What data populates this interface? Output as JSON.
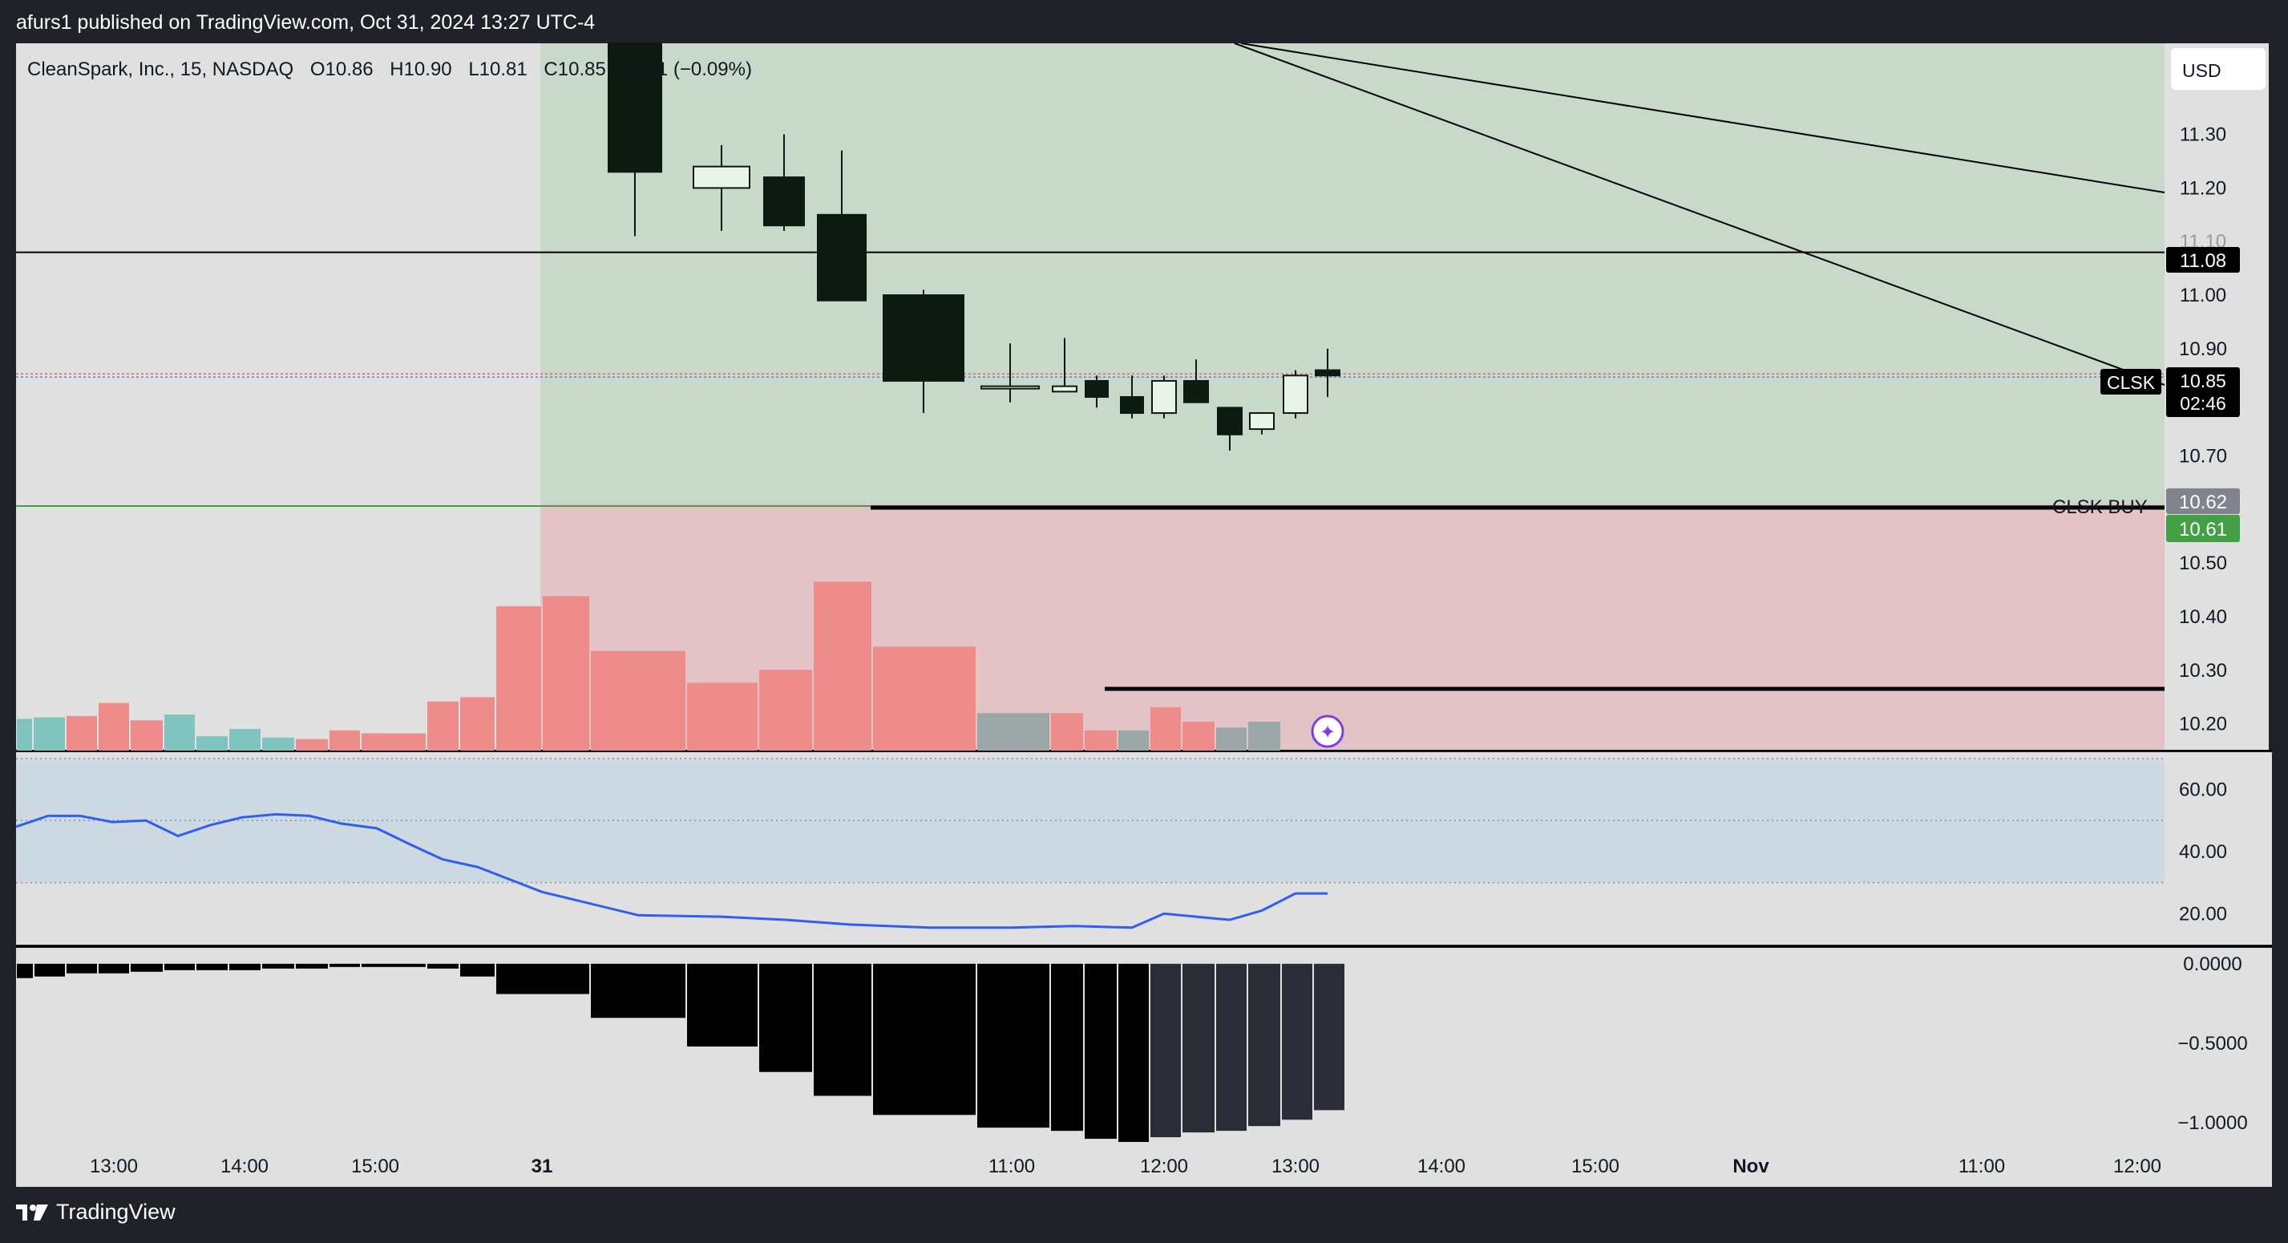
{
  "header": {
    "published": "afurs1 published on TradingView.com, Oct 31, 2024 13:27 UTC-4"
  },
  "footer": {
    "brand": "TradingView"
  },
  "legend": {
    "symbol": "CleanSpark, Inc., 15, NASDAQ",
    "o_label": "O",
    "o": "10.86",
    "h_label": "H",
    "h": "10.90",
    "l_label": "L",
    "l": "10.81",
    "c_label": "C",
    "c": "10.85",
    "change": "−0.01 (−0.09%)"
  },
  "currency_button": "USD",
  "colors": {
    "bg_outer": "#1f2229",
    "pane_bg": "#e0e0e0",
    "profit_zone": "#c8d9c9",
    "loss_zone": "#e3c3c6",
    "candle_down": "#0d1a12",
    "candle_up": "#e9f3ea",
    "vol_up": "#7fc4be",
    "vol_down": "#ee8c8c",
    "vol_neutral": "#9aa7a6",
    "rsi_line": "#2f5ef0",
    "rsi_band": "#cdd9e3",
    "hist": "#000000",
    "hist_recent": "#2a2d35",
    "buy_label_bg": "#43a047",
    "price_label_bg": "#000000",
    "grey_label_bg": "#7f848d"
  },
  "chart_data": [
    {
      "type": "candlestick",
      "title": "CleanSpark, Inc., 15, NASDAQ",
      "x_tick_labels": [
        "13:00",
        "14:00",
        "15:00",
        "31",
        "11:00",
        "12:00",
        "13:00",
        "14:00",
        "15:00",
        "Nov",
        "11:00",
        "12:00"
      ],
      "y_tick_labels": [
        "11.30",
        "11.20",
        "11.10",
        "11.00",
        "10.90",
        "10.70",
        "10.50",
        "10.40",
        "10.30",
        "10.20"
      ],
      "ylim": [
        10.15,
        11.47
      ],
      "candles": [
        {
          "time": "Oct 31 09:30",
          "open": 11.47,
          "high": 11.47,
          "low": 11.11,
          "close": 11.23
        },
        {
          "time": "Oct 31 09:45",
          "open": 11.2,
          "high": 11.28,
          "low": 11.12,
          "close": 11.24
        },
        {
          "time": "Oct 31 10:00",
          "open": 11.22,
          "high": 11.3,
          "low": 11.12,
          "close": 11.13
        },
        {
          "time": "Oct 31 10:15",
          "open": 11.15,
          "high": 11.27,
          "low": 10.99,
          "close": 10.99
        },
        {
          "time": "Oct 31 10:30",
          "open": 11.0,
          "high": 11.01,
          "low": 10.78,
          "close": 10.84
        },
        {
          "time": "Oct 31 10:45",
          "open": 10.83,
          "high": 10.91,
          "low": 10.8,
          "close": 10.83
        },
        {
          "time": "Oct 31 11:00",
          "open": 10.82,
          "high": 10.92,
          "low": 10.82,
          "close": 10.83
        },
        {
          "time": "Oct 31 11:15",
          "open": 10.84,
          "high": 10.85,
          "low": 10.79,
          "close": 10.81
        },
        {
          "time": "Oct 31 11:30",
          "open": 10.81,
          "high": 10.85,
          "low": 10.77,
          "close": 10.78
        },
        {
          "time": "Oct 31 11:45",
          "open": 10.78,
          "high": 10.85,
          "low": 10.77,
          "close": 10.84
        },
        {
          "time": "Oct 31 12:00",
          "open": 10.84,
          "high": 10.88,
          "low": 10.8,
          "close": 10.8
        },
        {
          "time": "Oct 31 12:15",
          "open": 10.79,
          "high": 10.79,
          "low": 10.71,
          "close": 10.74
        },
        {
          "time": "Oct 31 12:30",
          "open": 10.75,
          "high": 10.78,
          "low": 10.74,
          "close": 10.78
        },
        {
          "time": "Oct 31 12:45",
          "open": 10.78,
          "high": 10.86,
          "low": 10.77,
          "close": 10.85
        },
        {
          "time": "Oct 31 13:00",
          "open": 10.86,
          "high": 10.9,
          "low": 10.81,
          "close": 10.85
        }
      ],
      "horizontal_levels": [
        {
          "price": 11.08,
          "label": "11.08"
        },
        {
          "price": 10.61,
          "label": "10.61"
        }
      ],
      "trade_zone": {
        "entry": 10.62,
        "target_top": 11.47,
        "stop_bottom": 10.15
      },
      "trade_label": "CLSK BUY",
      "last_price": {
        "symbol": "CLSK",
        "price": "10.85",
        "countdown": "02:46"
      },
      "zone_entry_label": "10.62",
      "trendlines": "two descending lines from upper-left to right price axis"
    },
    {
      "type": "bar",
      "title": "Volume",
      "values": [
        0.22,
        0.23,
        0.24,
        0.33,
        0.21,
        0.25,
        0.1,
        0.15,
        0.09,
        0.08,
        0.14,
        0.12,
        0.34,
        0.37,
        1.0,
        1.07,
        0.69,
        0.47,
        0.56,
        1.17,
        0.72,
        0.26,
        0.26,
        0.14,
        0.14,
        0.3,
        0.2,
        0.16,
        0.2
      ],
      "directions": [
        "up",
        "up",
        "down",
        "down",
        "down",
        "up",
        "up",
        "up",
        "up",
        "down",
        "down",
        "down",
        "down",
        "down",
        "down",
        "down",
        "down",
        "down",
        "down",
        "down",
        "down",
        "neutral",
        "down",
        "down",
        "neutral",
        "down",
        "down",
        "neutral",
        "neutral"
      ]
    },
    {
      "type": "line",
      "title": "RSI",
      "y_tick_labels": [
        "60.00",
        "40.00",
        "20.00"
      ],
      "band": [
        30,
        70
      ],
      "midline": 50,
      "ylim": [
        10,
        72
      ],
      "values": [
        48,
        51.5,
        51.5,
        49.5,
        50,
        45,
        48.5,
        51,
        52,
        51.5,
        49,
        47.5,
        42,
        37.5,
        35,
        27,
        19.5,
        19,
        18,
        16.5,
        15.5,
        15.5,
        16,
        15.5,
        20,
        19,
        18,
        21,
        26.5,
        26.5
      ]
    },
    {
      "type": "bar",
      "title": "Histogram",
      "y_tick_labels": [
        "0.0000",
        "−0.5000",
        "−1.0000"
      ],
      "ylim": [
        -1.13,
        0.1
      ],
      "values": [
        -0.09,
        -0.08,
        -0.06,
        -0.06,
        -0.05,
        -0.04,
        -0.04,
        -0.04,
        -0.03,
        -0.03,
        -0.02,
        -0.02,
        -0.03,
        -0.08,
        -0.19,
        -0.34,
        -0.52,
        -0.68,
        -0.83,
        -0.95,
        -1.03,
        -1.05,
        -1.1,
        -1.12,
        -1.09,
        -1.06,
        -1.05,
        -1.02,
        -0.98,
        -0.92
      ]
    }
  ]
}
